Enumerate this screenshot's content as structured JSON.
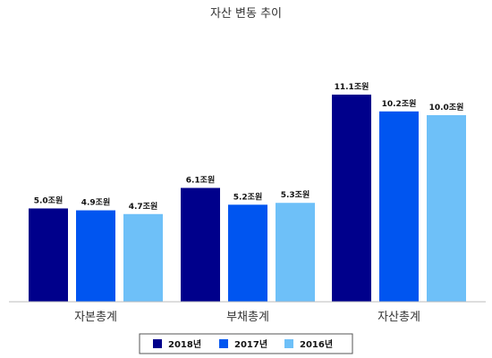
{
  "chart_data": {
    "type": "bar",
    "title": "자산 변동 추이",
    "xlabel": "",
    "ylabel": "",
    "categories": [
      "자본총계",
      "부채총계",
      "자산총계"
    ],
    "series": [
      {
        "name": "2018년",
        "color": "#00008B",
        "values": [
          5.0,
          6.1,
          11.1
        ],
        "labels": [
          "5.0조원",
          "6.1조원",
          "11.1조원"
        ]
      },
      {
        "name": "2017년",
        "color": "#0055F0",
        "values": [
          4.9,
          5.2,
          10.2
        ],
        "labels": [
          "4.9조원",
          "5.2조원",
          "10.2조원"
        ]
      },
      {
        "name": "2016년",
        "color": "#6EC0F8",
        "values": [
          4.7,
          5.3,
          10.0
        ],
        "labels": [
          "4.7조원",
          "5.3조원",
          "10.0조원"
        ]
      }
    ],
    "ylim": [
      0,
      13.3
    ],
    "grid": false,
    "legend": "bottom"
  }
}
